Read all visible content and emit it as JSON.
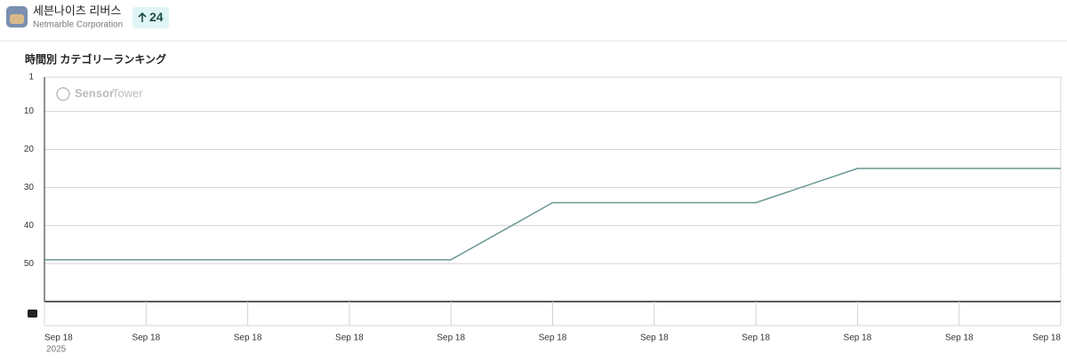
{
  "app": {
    "name": "세븐나이츠 리버스",
    "publisher": "Netmarble Corporation",
    "rank_change": "24"
  },
  "chart_data": {
    "type": "line",
    "title": "時間別 カテゴリーランキング",
    "watermark": [
      "Sensor",
      "Tower"
    ],
    "categories": [
      "Sep 18",
      "Sep 18",
      "Sep 18",
      "Sep 18",
      "Sep 18",
      "Sep 18",
      "Sep 18",
      "Sep 18",
      "Sep 18",
      "Sep 18",
      "Sep 18"
    ],
    "year_label": "2025",
    "values": [
      49,
      49,
      49,
      49,
      49,
      34,
      34,
      34,
      25,
      25,
      25
    ],
    "color": "#6a9794",
    "ylim": [
      1,
      60
    ],
    "yticks": [
      1,
      10,
      20,
      30,
      40,
      50
    ],
    "y_inverted": true,
    "grid": true
  }
}
